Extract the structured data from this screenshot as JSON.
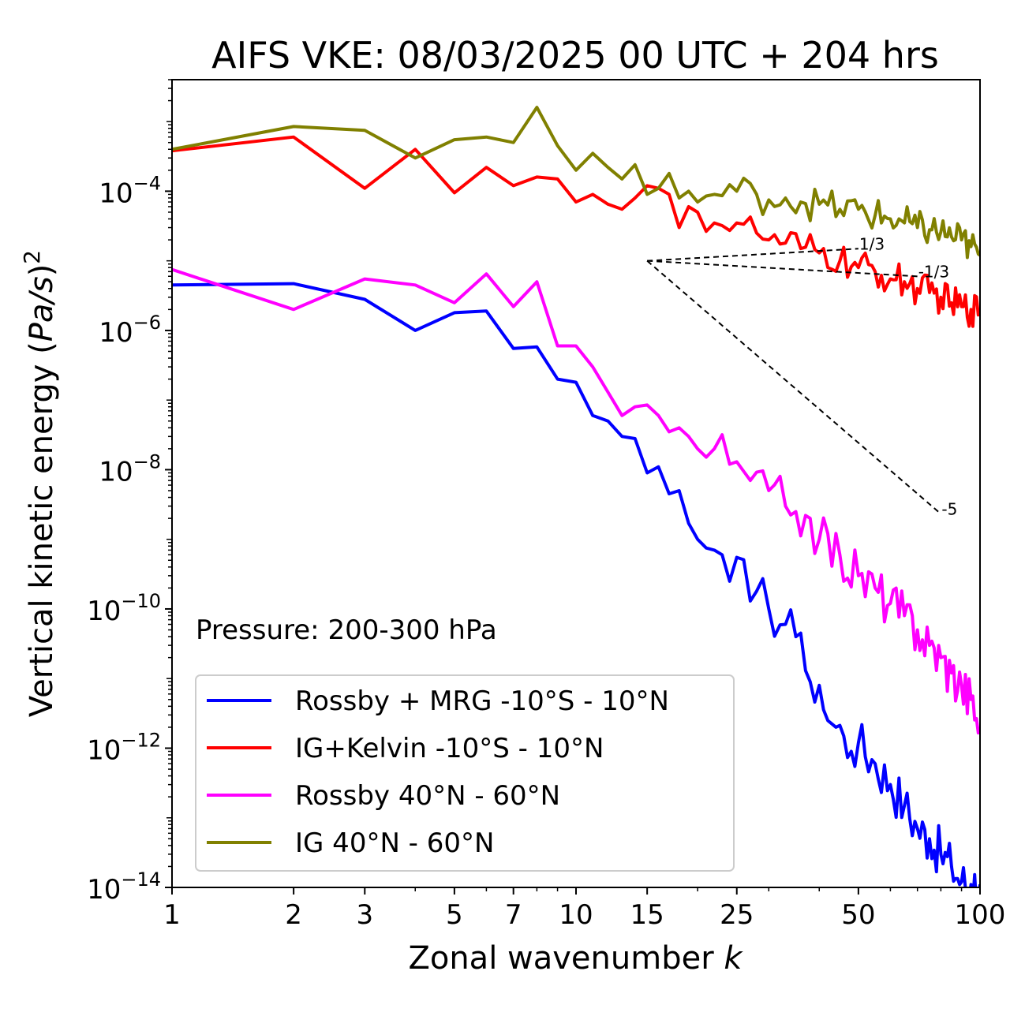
{
  "chart_data": {
    "type": "line",
    "title": "AIFS VKE: 08/03/2025 00 UTC + 204 hrs",
    "xlabel": "Zonal wavenumber k",
    "ylabel": "Vertical kinetic energy (Pa/s)^2",
    "xscale": "log",
    "yscale": "log",
    "xlim": [
      1,
      100
    ],
    "ylim": [
      1e-14,
      0.004
    ],
    "x_ticks": [
      1,
      2,
      3,
      5,
      7,
      10,
      15,
      25,
      50,
      100
    ],
    "x_tick_labels": [
      "1",
      "2",
      "3",
      "5",
      "7",
      "10",
      "15",
      "25",
      "50",
      "100"
    ],
    "y_ticks": [
      1e-14,
      1e-12,
      1e-10,
      1e-08,
      1e-06,
      0.0001
    ],
    "y_tick_labels": [
      {
        "base": "10",
        "exp": "−14"
      },
      {
        "base": "10",
        "exp": "−12"
      },
      {
        "base": "10",
        "exp": "−10"
      },
      {
        "base": "10",
        "exp": "−8"
      },
      {
        "base": "10",
        "exp": "−6"
      },
      {
        "base": "10",
        "exp": "−4"
      }
    ],
    "grid": false,
    "legend_placement": "lower-left",
    "annotation": "Pressure: 200-300 hPa",
    "series": [
      {
        "name": "Rossby + MRG -10°S - 10°N",
        "color": "#0000ff",
        "anchors": [
          [
            1,
            4.5e-06
          ],
          [
            2,
            4.7e-06
          ],
          [
            3,
            2.8e-06
          ],
          [
            4,
            1e-06
          ],
          [
            5,
            1.8e-06
          ],
          [
            6,
            1.9e-06
          ],
          [
            7,
            5.5e-07
          ],
          [
            8,
            5.8e-07
          ],
          [
            9,
            2e-07
          ],
          [
            10,
            1.8e-07
          ],
          [
            11,
            6e-08
          ],
          [
            12,
            5e-08
          ],
          [
            13,
            3e-08
          ],
          [
            14,
            2.8e-08
          ],
          [
            15,
            9e-09
          ],
          [
            16,
            1.1e-08
          ],
          [
            17,
            4.5e-09
          ],
          [
            18,
            5e-09
          ],
          [
            19,
            1.7e-09
          ],
          [
            20,
            1e-09
          ],
          [
            21,
            7.5e-10
          ],
          [
            22,
            7e-10
          ],
          [
            23,
            6e-10
          ],
          [
            24,
            2.5e-10
          ],
          [
            25,
            5.5e-10
          ],
          [
            27,
            1.3e-10
          ],
          [
            28,
            1.8e-10
          ],
          [
            30,
            1e-10
          ],
          [
            33,
            6e-11
          ],
          [
            35,
            4e-11
          ],
          [
            36,
            4.5e-11
          ],
          [
            37,
            1.3e-11
          ],
          [
            38,
            9e-12
          ],
          [
            40,
            8e-12
          ],
          [
            42,
            2.5e-12
          ],
          [
            44,
            2e-12
          ],
          [
            46,
            1.5e-12
          ],
          [
            48,
            9e-13
          ],
          [
            50,
            1.2e-12
          ],
          [
            55,
            6e-13
          ],
          [
            60,
            3e-13
          ],
          [
            65,
            1.5e-13
          ],
          [
            70,
            7e-14
          ],
          [
            75,
            5e-14
          ],
          [
            80,
            3e-14
          ],
          [
            85,
            2e-14
          ],
          [
            90,
            1.2e-14
          ],
          [
            95,
            1.1e-14
          ],
          [
            100,
            1.1e-14
          ]
        ],
        "noise": 0.16
      },
      {
        "name": "IG+Kelvin -10°S - 10°N",
        "color": "#ff0000",
        "anchors": [
          [
            1,
            0.00038
          ],
          [
            2,
            0.0006
          ],
          [
            3,
            0.00011
          ],
          [
            4,
            0.0004
          ],
          [
            5,
            9.5e-05
          ],
          [
            6,
            0.00022
          ],
          [
            7,
            0.00012
          ],
          [
            8,
            0.00016
          ],
          [
            9,
            0.00015
          ],
          [
            10,
            7e-05
          ],
          [
            11,
            9e-05
          ],
          [
            12,
            6.5e-05
          ],
          [
            13,
            5.5e-05
          ],
          [
            14,
            8e-05
          ],
          [
            15,
            0.00012
          ],
          [
            16,
            0.00011
          ],
          [
            17,
            9e-05
          ],
          [
            18,
            3e-05
          ],
          [
            19,
            6e-05
          ],
          [
            20,
            5e-05
          ],
          [
            22,
            3.5e-05
          ],
          [
            25,
            3.5e-05
          ],
          [
            28,
            2.5e-05
          ],
          [
            30,
            2e-05
          ],
          [
            33,
            1.8e-05
          ],
          [
            36,
            1.5e-05
          ],
          [
            40,
            1.3e-05
          ],
          [
            45,
            1e-05
          ],
          [
            50,
            8e-06
          ],
          [
            55,
            7e-06
          ],
          [
            60,
            5.5e-06
          ],
          [
            65,
            5e-06
          ],
          [
            70,
            4e-06
          ],
          [
            75,
            3.5e-06
          ],
          [
            80,
            3e-06
          ],
          [
            85,
            2.5e-06
          ],
          [
            90,
            2.2e-06
          ],
          [
            95,
            2e-06
          ],
          [
            100,
            2e-06
          ]
        ],
        "noise": 0.11
      },
      {
        "name": "Rossby 40°N - 60°N",
        "color": "#ff00ff",
        "anchors": [
          [
            1,
            7.5e-06
          ],
          [
            2,
            2e-06
          ],
          [
            3,
            5.5e-06
          ],
          [
            4,
            4.5e-06
          ],
          [
            5,
            2.5e-06
          ],
          [
            6,
            6.5e-06
          ],
          [
            7,
            2.2e-06
          ],
          [
            8,
            5e-06
          ],
          [
            9,
            6e-07
          ],
          [
            10,
            6e-07
          ],
          [
            11,
            3e-07
          ],
          [
            12,
            1.3e-07
          ],
          [
            13,
            6e-08
          ],
          [
            14,
            8e-08
          ],
          [
            15,
            8.5e-08
          ],
          [
            16,
            6e-08
          ],
          [
            17,
            3.5e-08
          ],
          [
            18,
            4e-08
          ],
          [
            19,
            3e-08
          ],
          [
            20,
            2e-08
          ],
          [
            22,
            2e-08
          ],
          [
            24,
            1.2e-08
          ],
          [
            25,
            1.3e-08
          ],
          [
            27,
            7e-09
          ],
          [
            30,
            5e-09
          ],
          [
            33,
            3e-09
          ],
          [
            35,
            2.5e-09
          ],
          [
            38,
            2e-09
          ],
          [
            40,
            1e-09
          ],
          [
            45,
            6e-10
          ],
          [
            50,
            3e-10
          ],
          [
            55,
            2e-10
          ],
          [
            60,
            1.2e-10
          ],
          [
            65,
            8e-11
          ],
          [
            70,
            5e-11
          ],
          [
            75,
            3e-11
          ],
          [
            80,
            2e-11
          ],
          [
            85,
            1.2e-11
          ],
          [
            90,
            8e-12
          ],
          [
            95,
            5e-12
          ],
          [
            100,
            2e-12
          ]
        ],
        "noise": 0.16
      },
      {
        "name": "IG 40°N - 60°N",
        "color": "#808000",
        "anchors": [
          [
            1,
            0.0004
          ],
          [
            2,
            0.00085
          ],
          [
            3,
            0.00075
          ],
          [
            4,
            0.0003
          ],
          [
            5,
            0.00055
          ],
          [
            6,
            0.0006
          ],
          [
            7,
            0.0005
          ],
          [
            8,
            0.0016
          ],
          [
            9,
            0.00045
          ],
          [
            10,
            0.0002
          ],
          [
            11,
            0.00035
          ],
          [
            12,
            0.00022
          ],
          [
            13,
            0.00015
          ],
          [
            14,
            0.00024
          ],
          [
            15,
            9e-05
          ],
          [
            16,
            0.00011
          ],
          [
            17,
            0.00018
          ],
          [
            18,
            8e-05
          ],
          [
            19,
            0.0001
          ],
          [
            20,
            7e-05
          ],
          [
            22,
            9e-05
          ],
          [
            25,
            0.0001
          ],
          [
            28,
            9e-05
          ],
          [
            30,
            7.5e-05
          ],
          [
            33,
            8e-05
          ],
          [
            36,
            7e-05
          ],
          [
            40,
            6.5e-05
          ],
          [
            45,
            5.5e-05
          ],
          [
            50,
            5.5e-05
          ],
          [
            55,
            4.5e-05
          ],
          [
            60,
            4e-05
          ],
          [
            65,
            3.5e-05
          ],
          [
            70,
            3e-05
          ],
          [
            75,
            2.8e-05
          ],
          [
            80,
            2.6e-05
          ],
          [
            85,
            2.2e-05
          ],
          [
            90,
            2e-05
          ],
          [
            95,
            1.6e-05
          ],
          [
            100,
            1.2e-05
          ]
        ],
        "noise": 0.11
      }
    ],
    "reference_slopes": [
      {
        "label": "1/3",
        "slope": 0.3333,
        "x_start": 15,
        "x_end": 50,
        "y_start": 1e-05
      },
      {
        "label": "-1/3",
        "slope": -0.3333,
        "x_start": 15,
        "x_end": 70,
        "y_start": 1e-05
      },
      {
        "label": "-5",
        "slope": -5,
        "x_start": 15,
        "x_end": 80,
        "y_start": 1e-05
      }
    ]
  }
}
